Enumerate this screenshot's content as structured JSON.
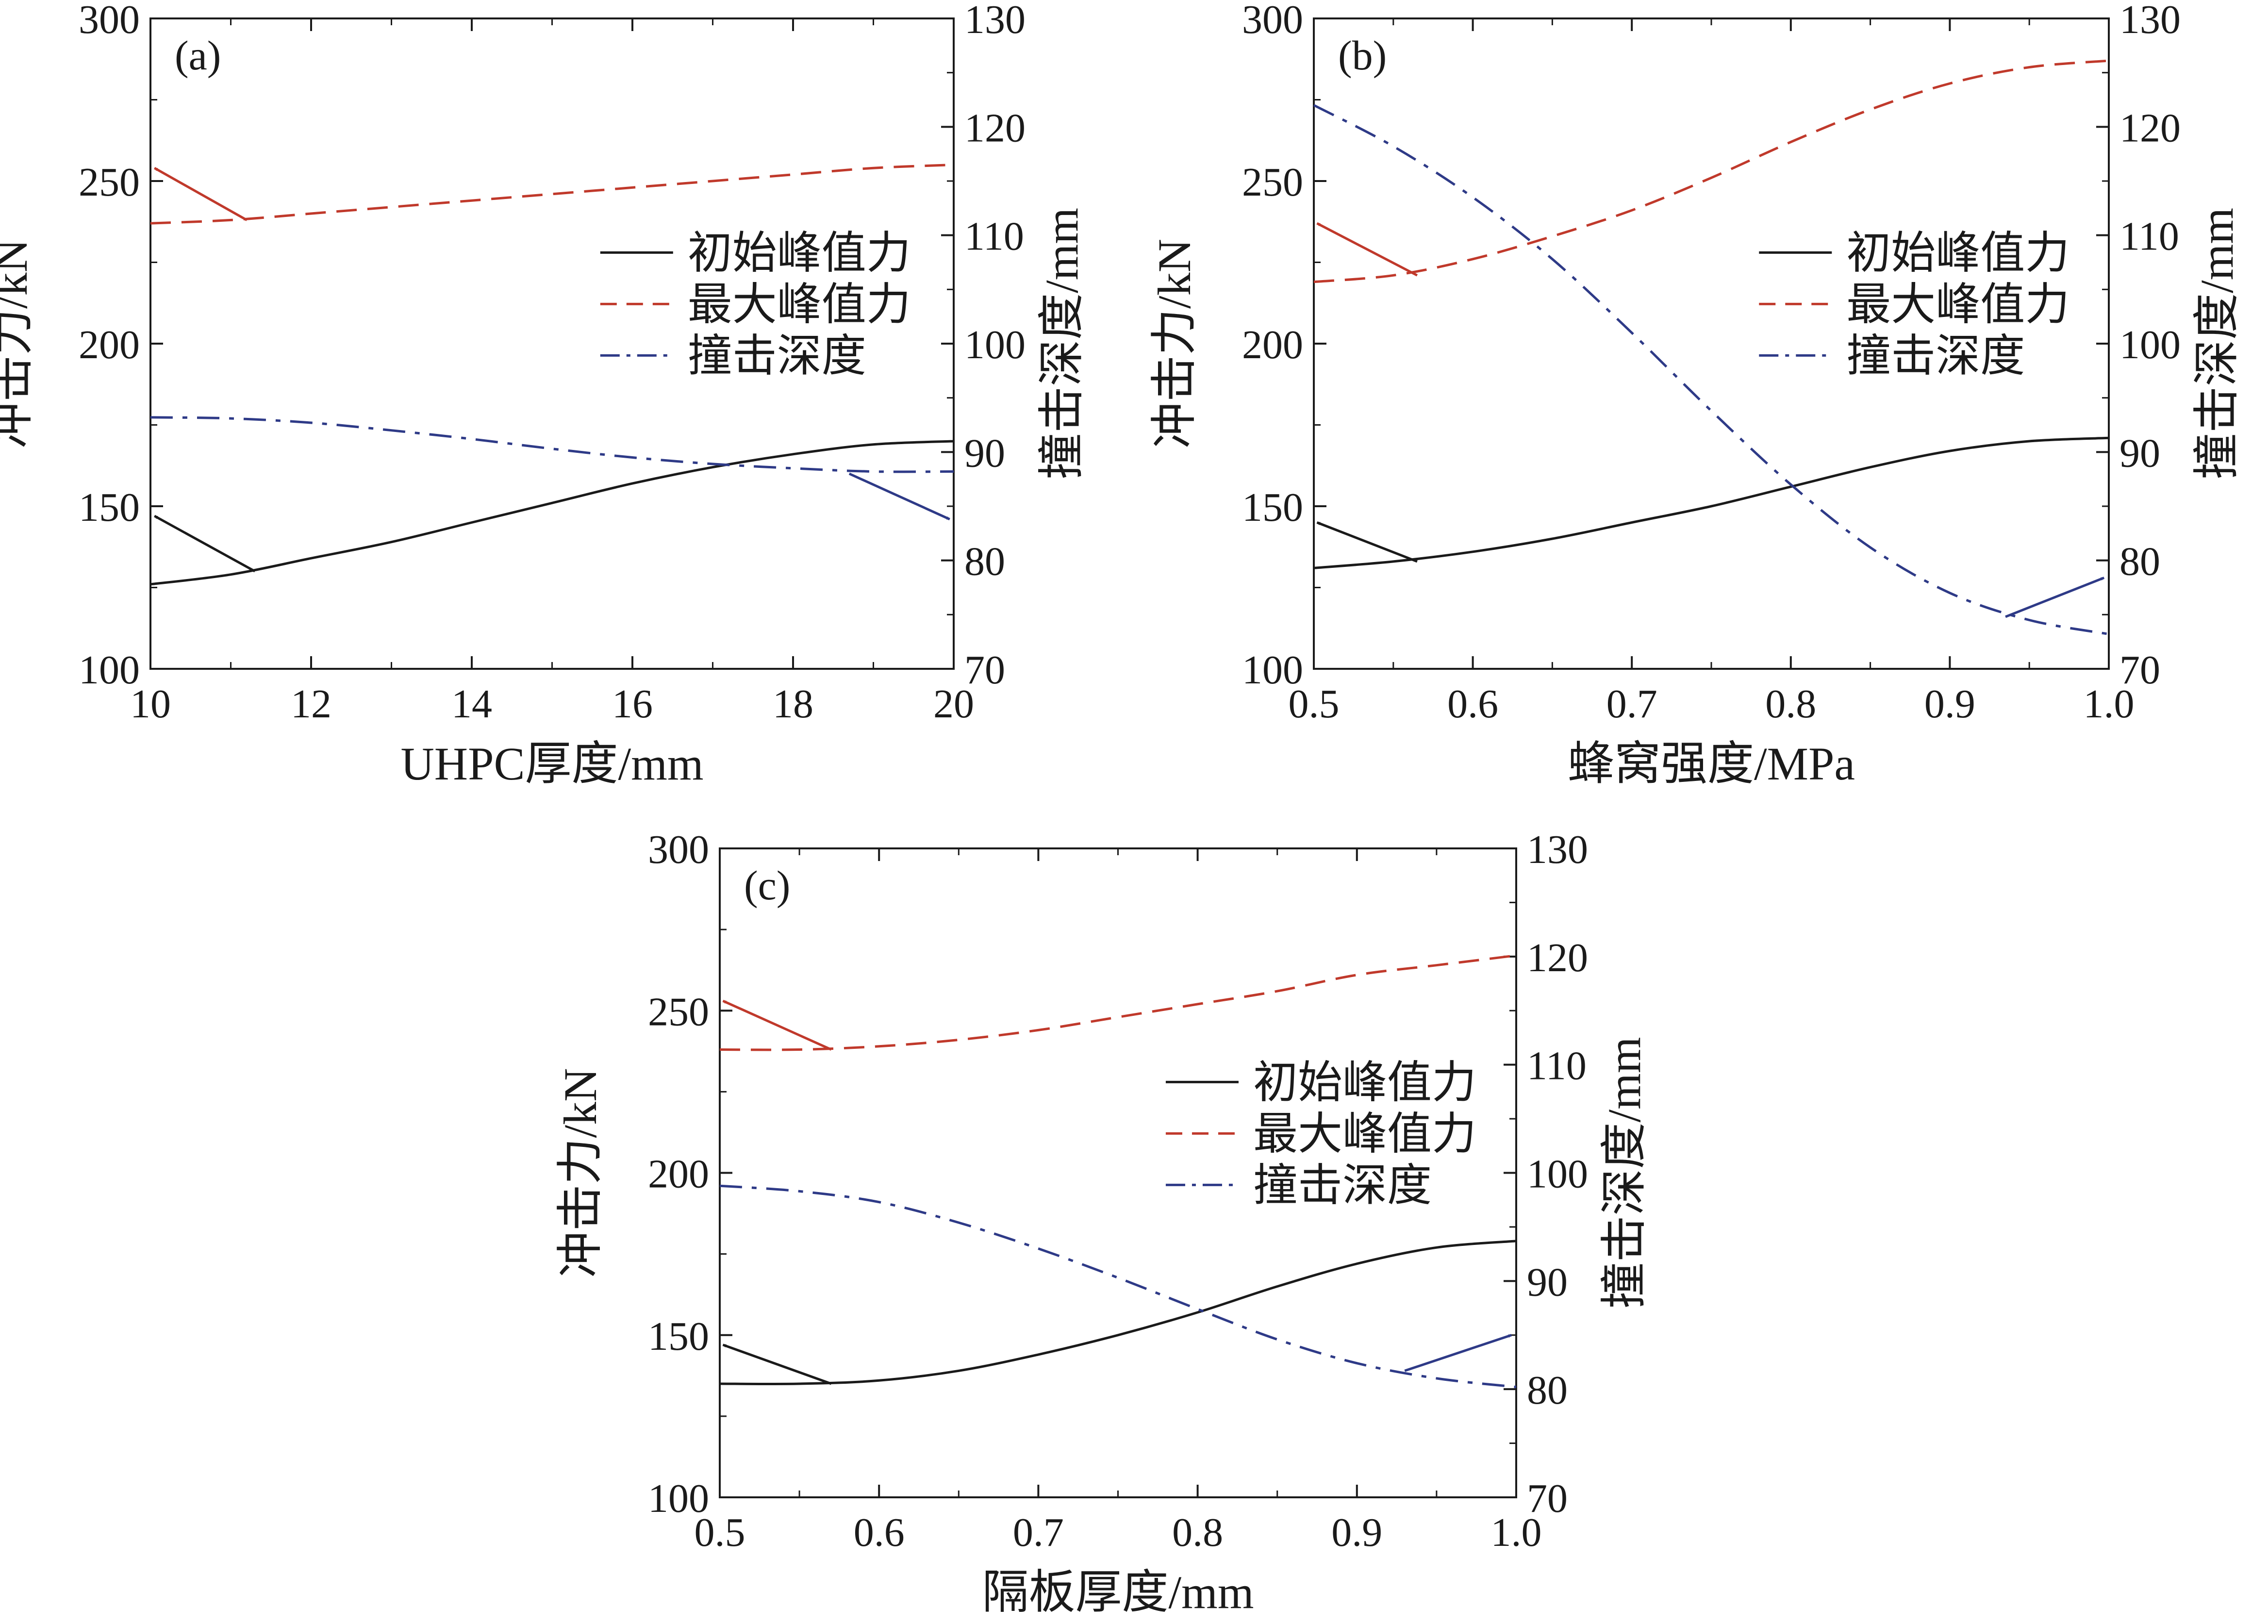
{
  "chart_data": [
    {
      "panel": "a",
      "panel_label": "(a)",
      "type": "line",
      "xlabel": "UHPC厚度/mm",
      "ylabel_left": "冲击力/kN",
      "ylabel_right": "撞击深度/mm",
      "xlim": [
        10,
        20
      ],
      "ylim_left": [
        100,
        300
      ],
      "ylim_right": [
        70,
        130
      ],
      "xticks": [
        "10",
        "12",
        "14",
        "16",
        "18",
        "20"
      ],
      "yticks_left": [
        "100",
        "150",
        "200",
        "250",
        "300"
      ],
      "yticks_right": [
        "70",
        "80",
        "90",
        "100",
        "110",
        "120",
        "130"
      ],
      "grid": false,
      "legend_position": "center-right",
      "series": [
        {
          "name": "初始峰值力",
          "axis": "left",
          "style": "solid",
          "color": "#1a1a1a",
          "x": [
            10,
            11,
            12,
            13,
            14,
            15,
            16,
            17,
            18,
            19,
            20
          ],
          "y": [
            126,
            129,
            134,
            139,
            145,
            151,
            157,
            162,
            166,
            169,
            170
          ]
        },
        {
          "name": "最大峰值力",
          "axis": "left",
          "style": "dashed",
          "color": "#c0392b",
          "x": [
            10,
            11,
            12,
            13,
            14,
            15,
            16,
            17,
            18,
            19,
            20
          ],
          "y": [
            237,
            238,
            240,
            242,
            244,
            246,
            248,
            250,
            252,
            254,
            255
          ]
        },
        {
          "name": "撞击深度",
          "axis": "right",
          "style": "dashdot",
          "color": "#2e3a87",
          "x": [
            10,
            11,
            12,
            13,
            14,
            15,
            16,
            17,
            18,
            19,
            20
          ],
          "y": [
            93.2,
            93.1,
            92.7,
            92.0,
            91.2,
            90.3,
            89.5,
            88.9,
            88.5,
            88.2,
            88.2
          ]
        }
      ],
      "arrows": [
        {
          "color": "#c0392b",
          "from": [
            11.2,
            238
          ],
          "to": [
            10.05,
            254
          ]
        },
        {
          "color": "#1a1a1a",
          "from": [
            11.3,
            130
          ],
          "to": [
            10.05,
            147
          ]
        },
        {
          "color": "#2e3a87",
          "from": [
            18.7,
            160
          ],
          "to": [
            19.95,
            146
          ]
        }
      ]
    },
    {
      "panel": "b",
      "panel_label": "(b)",
      "type": "line",
      "xlabel": "蜂窝强度/MPa",
      "ylabel_left": "冲击力/kN",
      "ylabel_right": "撞击深度/mm",
      "xlim": [
        0.5,
        1.0
      ],
      "ylim_left": [
        100,
        300
      ],
      "ylim_right": [
        70,
        130
      ],
      "xticks": [
        "0.5",
        "0.6",
        "0.7",
        "0.8",
        "0.9",
        "1.0"
      ],
      "yticks_left": [
        "100",
        "150",
        "200",
        "250",
        "300"
      ],
      "yticks_right": [
        "70",
        "80",
        "90",
        "100",
        "110",
        "120",
        "130"
      ],
      "grid": false,
      "legend_position": "center-right",
      "series": [
        {
          "name": "初始峰值力",
          "axis": "left",
          "style": "solid",
          "color": "#1a1a1a",
          "x": [
            0.5,
            0.55,
            0.6,
            0.65,
            0.7,
            0.75,
            0.8,
            0.85,
            0.9,
            0.95,
            1.0
          ],
          "y": [
            131,
            133,
            136,
            140,
            145,
            150,
            156,
            162,
            167,
            170,
            171
          ]
        },
        {
          "name": "最大峰值力",
          "axis": "left",
          "style": "dashed",
          "color": "#c0392b",
          "x": [
            0.5,
            0.55,
            0.6,
            0.65,
            0.7,
            0.75,
            0.8,
            0.85,
            0.9,
            0.95,
            1.0
          ],
          "y": [
            219,
            221,
            226,
            233,
            241,
            251,
            262,
            272,
            280,
            285,
            287
          ]
        },
        {
          "name": "撞击深度",
          "axis": "right",
          "style": "dashdot",
          "color": "#2e3a87",
          "x": [
            0.5,
            0.55,
            0.6,
            0.65,
            0.7,
            0.75,
            0.8,
            0.85,
            0.9,
            0.95,
            1.0
          ],
          "y": [
            122,
            118.2,
            113.5,
            107.8,
            101,
            93.8,
            87,
            81.2,
            77,
            74.5,
            73.2
          ]
        }
      ],
      "arrows": [
        {
          "color": "#c0392b",
          "from": [
            0.565,
            221
          ],
          "to": [
            0.502,
            237
          ]
        },
        {
          "color": "#1a1a1a",
          "from": [
            0.565,
            133
          ],
          "to": [
            0.502,
            145
          ]
        },
        {
          "color": "#2e3a87",
          "from": [
            0.935,
            116
          ],
          "to": [
            0.997,
            128
          ]
        }
      ]
    },
    {
      "panel": "c",
      "panel_label": "(c)",
      "type": "line",
      "xlabel": "隔板厚度/mm",
      "ylabel_left": "冲击力/kN",
      "ylabel_right": "撞击深度/mm",
      "xlim": [
        0.5,
        1.0
      ],
      "ylim_left": [
        100,
        300
      ],
      "ylim_right": [
        70,
        130
      ],
      "xticks": [
        "0.5",
        "0.6",
        "0.7",
        "0.8",
        "0.9",
        "1.0"
      ],
      "yticks_left": [
        "100",
        "150",
        "200",
        "250",
        "300"
      ],
      "yticks_right": [
        "70",
        "80",
        "90",
        "100",
        "110",
        "120",
        "130"
      ],
      "grid": false,
      "legend_position": "center-right",
      "series": [
        {
          "name": "初始峰值力",
          "axis": "left",
          "style": "solid",
          "color": "#1a1a1a",
          "x": [
            0.5,
            0.55,
            0.6,
            0.65,
            0.7,
            0.75,
            0.8,
            0.85,
            0.9,
            0.95,
            1.0
          ],
          "y": [
            135,
            135,
            136,
            139,
            144,
            150,
            157,
            165,
            172,
            177,
            179
          ]
        },
        {
          "name": "最大峰值力",
          "axis": "left",
          "style": "dashed",
          "color": "#c0392b",
          "x": [
            0.5,
            0.55,
            0.6,
            0.65,
            0.7,
            0.75,
            0.8,
            0.85,
            0.9,
            0.95,
            1.0
          ],
          "y": [
            238,
            238,
            239,
            241,
            244,
            248,
            252,
            256,
            261,
            264,
            267
          ]
        },
        {
          "name": "撞击深度",
          "axis": "right",
          "style": "dashdot",
          "color": "#2e3a87",
          "x": [
            0.5,
            0.55,
            0.6,
            0.65,
            0.7,
            0.75,
            0.8,
            0.85,
            0.9,
            0.95,
            1.0
          ],
          "y": [
            98.8,
            98.3,
            97.3,
            95.4,
            93.0,
            90.3,
            87.4,
            84.6,
            82.4,
            81.0,
            80.2
          ]
        }
      ],
      "arrows": [
        {
          "color": "#c0392b",
          "from": [
            0.57,
            238
          ],
          "to": [
            0.502,
            253
          ]
        },
        {
          "color": "#1a1a1a",
          "from": [
            0.57,
            135
          ],
          "to": [
            0.502,
            147
          ]
        },
        {
          "color": "#2e3a87",
          "from": [
            0.93,
            139
          ],
          "to": [
            0.997,
            150
          ]
        }
      ]
    }
  ]
}
